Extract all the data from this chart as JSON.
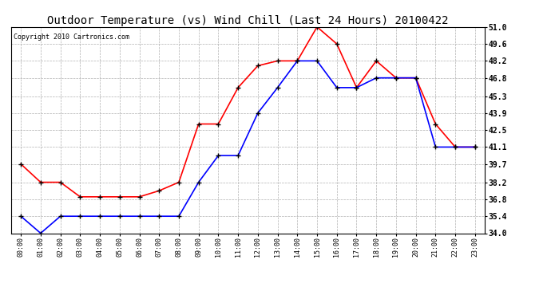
{
  "title": "Outdoor Temperature (vs) Wind Chill (Last 24 Hours) 20100422",
  "copyright": "Copyright 2010 Cartronics.com",
  "hours": [
    "00:00",
    "01:00",
    "02:00",
    "03:00",
    "04:00",
    "05:00",
    "06:00",
    "07:00",
    "08:00",
    "09:00",
    "10:00",
    "11:00",
    "12:00",
    "13:00",
    "14:00",
    "15:00",
    "16:00",
    "17:00",
    "18:00",
    "19:00",
    "20:00",
    "21:00",
    "22:00",
    "23:00"
  ],
  "outdoor_temp": [
    39.7,
    38.2,
    38.2,
    37.0,
    37.0,
    37.0,
    37.0,
    37.5,
    38.2,
    43.0,
    43.0,
    46.0,
    47.8,
    48.2,
    48.2,
    51.0,
    49.6,
    46.0,
    48.2,
    46.8,
    46.8,
    43.0,
    41.1,
    41.1
  ],
  "wind_chill": [
    35.4,
    34.0,
    35.4,
    35.4,
    35.4,
    35.4,
    35.4,
    35.4,
    35.4,
    38.2,
    40.4,
    40.4,
    43.9,
    46.0,
    48.2,
    48.2,
    46.0,
    46.0,
    46.8,
    46.8,
    46.8,
    41.1,
    41.1,
    41.1
  ],
  "temp_color": "#ff0000",
  "wind_chill_color": "#0000ff",
  "bg_color": "#ffffff",
  "grid_color": "#b0b0b0",
  "ylim": [
    34.0,
    51.0
  ],
  "yticks": [
    34.0,
    35.4,
    36.8,
    38.2,
    39.7,
    41.1,
    42.5,
    43.9,
    45.3,
    46.8,
    48.2,
    49.6,
    51.0
  ],
  "title_fontsize": 10,
  "copyright_fontsize": 6,
  "xtick_fontsize": 6,
  "ytick_fontsize": 7
}
